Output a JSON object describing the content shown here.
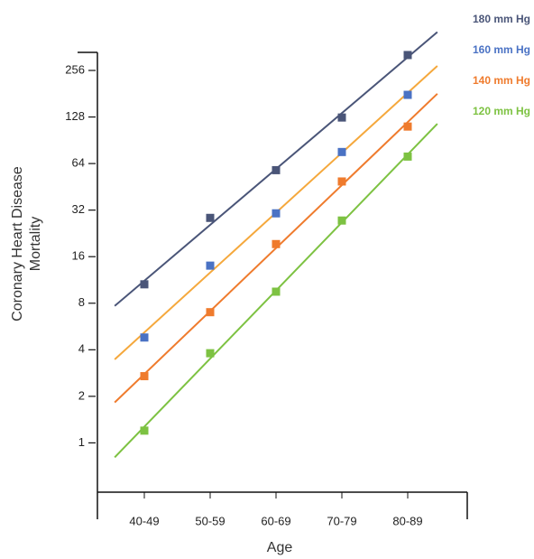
{
  "chart_data": {
    "type": "scatter",
    "xlabel": "Age",
    "ylabel": [
      "Coronary Heart Disease",
      "Mortality"
    ],
    "categories": [
      "40-49",
      "50-59",
      "60-69",
      "70-79",
      "80-89"
    ],
    "ylim": [
      0.48,
      335
    ],
    "yticks": [
      1,
      2,
      4,
      8,
      16,
      32,
      64,
      128,
      256
    ],
    "log_scale_y": true,
    "grid": false,
    "trend_lines": true,
    "legend": "top-right",
    "series": [
      {
        "name": "180 mm Hg",
        "color": "#4a5578",
        "line_color": "#4a5578",
        "values": [
          10.6,
          28.5,
          58,
          127,
          322
        ]
      },
      {
        "name": "160 mm Hg",
        "color": "#4a72c4",
        "line_color": "#f5a83c",
        "values": [
          4.8,
          14,
          30.5,
          76,
          178
        ]
      },
      {
        "name": "140 mm Hg",
        "color": "#ef7b2d",
        "line_color": "#ef7b2d",
        "values": [
          2.7,
          7,
          19.3,
          49,
          111
        ]
      },
      {
        "name": "120 mm Hg",
        "color": "#7dc242",
        "line_color": "#7dc242",
        "values": [
          1.2,
          3.8,
          9.5,
          27.4,
          71
        ]
      }
    ]
  }
}
